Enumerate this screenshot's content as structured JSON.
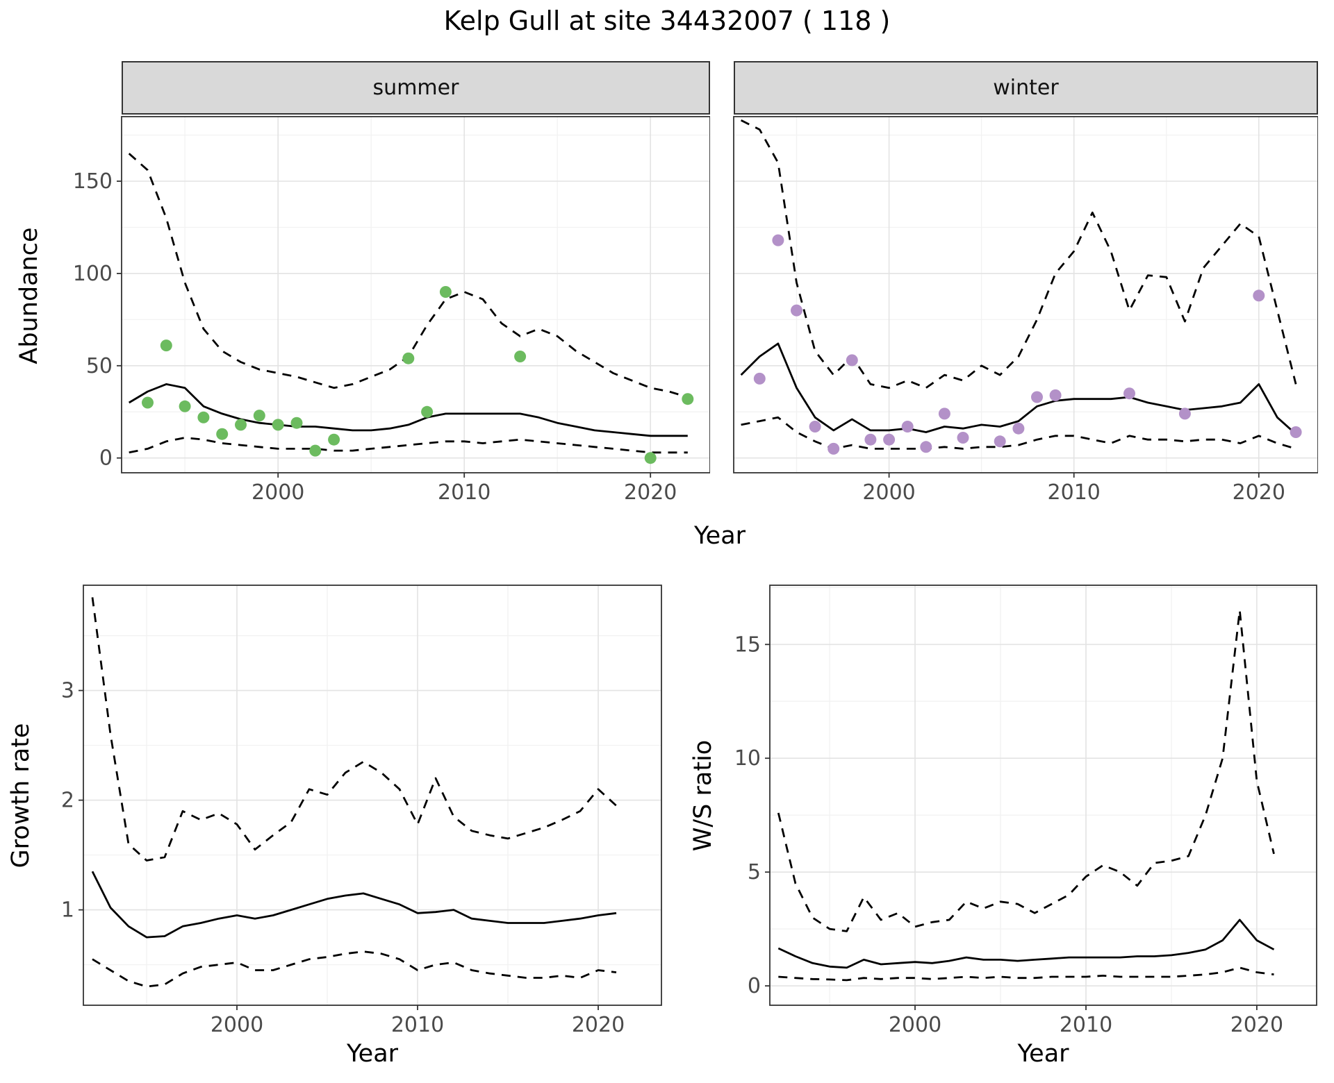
{
  "title": "Kelp Gull at site 34432007 ( 118 )",
  "axes": {
    "x": "Year",
    "abundance": "Abundance",
    "growth_rate": "Growth rate",
    "ws_ratio": "W/S ratio"
  },
  "facets": {
    "summer": "summer",
    "winter": "winter"
  },
  "colors": {
    "summer_points": "#6cbb5f",
    "winter_points": "#b391c8",
    "line": "#000000",
    "grid_major": "#e3e3e3",
    "grid_minor": "#f2f2f2",
    "strip_bg": "#d9d9d9",
    "panel_border": "#333333"
  },
  "chart_data": [
    {
      "id": "abundance-summer",
      "type": "line",
      "facet_label": "summer",
      "xlabel": "Year",
      "ylabel": "Abundance",
      "xlim": [
        1991.6,
        2023.2
      ],
      "ylim": [
        -8,
        185
      ],
      "xticks": [
        2000,
        2010,
        2020
      ],
      "yticks": [
        0,
        50,
        100,
        150
      ],
      "series": [
        {
          "name": "estimate",
          "style": "solid",
          "x": [
            1992,
            1993,
            1994,
            1995,
            1996,
            1997,
            1998,
            1999,
            2000,
            2001,
            2002,
            2003,
            2004,
            2005,
            2006,
            2007,
            2008,
            2009,
            2010,
            2011,
            2012,
            2013,
            2014,
            2015,
            2016,
            2017,
            2018,
            2019,
            2020,
            2021,
            2022
          ],
          "y": [
            30,
            36,
            40,
            38,
            28,
            24,
            21,
            19,
            18,
            17,
            17,
            16,
            15,
            15,
            16,
            18,
            22,
            24,
            24,
            24,
            24,
            24,
            22,
            19,
            17,
            15,
            14,
            13,
            12,
            12,
            12
          ]
        },
        {
          "name": "upper-ci",
          "style": "dashed",
          "x": [
            1992,
            1993,
            1994,
            1995,
            1996,
            1997,
            1998,
            1999,
            2000,
            2001,
            2002,
            2003,
            2004,
            2005,
            2006,
            2007,
            2008,
            2009,
            2010,
            2011,
            2012,
            2013,
            2014,
            2015,
            2016,
            2017,
            2018,
            2019,
            2020,
            2021,
            2022
          ],
          "y": [
            165,
            156,
            130,
            95,
            70,
            58,
            52,
            48,
            46,
            44,
            41,
            38,
            40,
            44,
            48,
            55,
            72,
            86,
            90,
            86,
            73,
            66,
            70,
            66,
            58,
            52,
            46,
            42,
            38,
            36,
            33
          ]
        },
        {
          "name": "lower-ci",
          "style": "dashed",
          "x": [
            1992,
            1993,
            1994,
            1995,
            1996,
            1997,
            1998,
            1999,
            2000,
            2001,
            2002,
            2003,
            2004,
            2005,
            2006,
            2007,
            2008,
            2009,
            2010,
            2011,
            2012,
            2013,
            2014,
            2015,
            2016,
            2017,
            2018,
            2019,
            2020,
            2021,
            2022
          ],
          "y": [
            3,
            5,
            9,
            11,
            10,
            8,
            7,
            6,
            5,
            5,
            5,
            4,
            4,
            5,
            6,
            7,
            8,
            9,
            9,
            8,
            9,
            10,
            9,
            8,
            7,
            6,
            5,
            4,
            3,
            3,
            3
          ]
        },
        {
          "name": "observed",
          "style": "points",
          "color": "#6cbb5f",
          "x": [
            1993,
            1994,
            1995,
            1996,
            1997,
            1998,
            1999,
            2000,
            2001,
            2002,
            2003,
            2007,
            2008,
            2009,
            2013,
            2020,
            2022
          ],
          "y": [
            30,
            61,
            28,
            22,
            13,
            18,
            23,
            18,
            19,
            4,
            10,
            54,
            25,
            90,
            55,
            0,
            32
          ]
        }
      ]
    },
    {
      "id": "abundance-winter",
      "type": "line",
      "facet_label": "winter",
      "xlabel": "Year",
      "ylabel": "Abundance",
      "xlim": [
        1991.6,
        2023.2
      ],
      "ylim": [
        -8,
        185
      ],
      "xticks": [
        2000,
        2010,
        2020
      ],
      "yticks": [
        0,
        50,
        100,
        150
      ],
      "series": [
        {
          "name": "estimate",
          "style": "solid",
          "x": [
            1992,
            1993,
            1994,
            1995,
            1996,
            1997,
            1998,
            1999,
            2000,
            2001,
            2002,
            2003,
            2004,
            2005,
            2006,
            2007,
            2008,
            2009,
            2010,
            2011,
            2012,
            2013,
            2014,
            2015,
            2016,
            2017,
            2018,
            2019,
            2020,
            2021,
            2022
          ],
          "y": [
            45,
            55,
            62,
            38,
            22,
            15,
            21,
            15,
            15,
            16,
            14,
            17,
            16,
            18,
            17,
            20,
            28,
            31,
            32,
            32,
            32,
            33,
            30,
            28,
            26,
            27,
            28,
            30,
            40,
            22,
            13
          ]
        },
        {
          "name": "upper-ci",
          "style": "dashed",
          "x": [
            1992,
            1993,
            1994,
            1995,
            1996,
            1997,
            1998,
            1999,
            2000,
            2001,
            2002,
            2003,
            2004,
            2005,
            2006,
            2007,
            2008,
            2009,
            2010,
            2011,
            2012,
            2013,
            2014,
            2015,
            2016,
            2017,
            2018,
            2019,
            2020,
            2021,
            2022
          ],
          "y": [
            183,
            178,
            160,
            95,
            58,
            45,
            55,
            40,
            38,
            42,
            38,
            45,
            42,
            50,
            45,
            55,
            75,
            100,
            112,
            133,
            112,
            80,
            99,
            98,
            74,
            103,
            115,
            127,
            120,
            80,
            40
          ]
        },
        {
          "name": "lower-ci",
          "style": "dashed",
          "x": [
            1992,
            1993,
            1994,
            1995,
            1996,
            1997,
            1998,
            1999,
            2000,
            2001,
            2002,
            2003,
            2004,
            2005,
            2006,
            2007,
            2008,
            2009,
            2010,
            2011,
            2012,
            2013,
            2014,
            2015,
            2016,
            2017,
            2018,
            2019,
            2020,
            2021,
            2022
          ],
          "y": [
            18,
            20,
            22,
            14,
            9,
            5,
            7,
            5,
            5,
            5,
            5,
            6,
            5,
            6,
            6,
            7,
            10,
            12,
            12,
            10,
            8,
            12,
            10,
            10,
            9,
            10,
            10,
            8,
            12,
            8,
            5
          ]
        },
        {
          "name": "observed",
          "style": "points",
          "color": "#b391c8",
          "x": [
            1993,
            1994,
            1995,
            1996,
            1997,
            1998,
            1999,
            2000,
            2001,
            2002,
            2003,
            2004,
            2006,
            2007,
            2008,
            2009,
            2013,
            2016,
            2020,
            2022
          ],
          "y": [
            43,
            118,
            80,
            17,
            5,
            53,
            10,
            10,
            17,
            6,
            24,
            11,
            9,
            16,
            33,
            34,
            35,
            24,
            88,
            14
          ]
        }
      ]
    },
    {
      "id": "growth-rate",
      "type": "line",
      "xlabel": "Year",
      "ylabel": "Growth rate",
      "xlim": [
        1991.5,
        2023.5
      ],
      "ylim": [
        0.13,
        3.96
      ],
      "xticks": [
        2000,
        2010,
        2020
      ],
      "yticks": [
        1,
        2,
        3
      ],
      "series": [
        {
          "name": "estimate",
          "style": "solid",
          "x": [
            1992,
            1993,
            1994,
            1995,
            1996,
            1997,
            1998,
            1999,
            2000,
            2001,
            2002,
            2003,
            2004,
            2005,
            2006,
            2007,
            2008,
            2009,
            2010,
            2011,
            2012,
            2013,
            2014,
            2015,
            2016,
            2017,
            2018,
            2019,
            2020,
            2021
          ],
          "y": [
            1.35,
            1.02,
            0.85,
            0.75,
            0.76,
            0.85,
            0.88,
            0.92,
            0.95,
            0.92,
            0.95,
            1.0,
            1.05,
            1.1,
            1.13,
            1.15,
            1.1,
            1.05,
            0.97,
            0.98,
            1.0,
            0.92,
            0.9,
            0.88,
            0.88,
            0.88,
            0.9,
            0.92,
            0.95,
            0.97
          ]
        },
        {
          "name": "upper-ci",
          "style": "dashed",
          "x": [
            1992,
            1993,
            1994,
            1995,
            1996,
            1997,
            1998,
            1999,
            2000,
            2001,
            2002,
            2003,
            2004,
            2005,
            2006,
            2007,
            2008,
            2009,
            2010,
            2011,
            2012,
            2013,
            2014,
            2015,
            2016,
            2017,
            2018,
            2019,
            2020,
            2021
          ],
          "y": [
            3.85,
            2.6,
            1.6,
            1.45,
            1.48,
            1.9,
            1.82,
            1.88,
            1.78,
            1.55,
            1.68,
            1.8,
            2.1,
            2.05,
            2.25,
            2.35,
            2.25,
            2.1,
            1.78,
            2.2,
            1.85,
            1.72,
            1.68,
            1.65,
            1.7,
            1.75,
            1.82,
            1.9,
            2.1,
            1.95
          ]
        },
        {
          "name": "lower-ci",
          "style": "dashed",
          "x": [
            1992,
            1993,
            1994,
            1995,
            1996,
            1997,
            1998,
            1999,
            2000,
            2001,
            2002,
            2003,
            2004,
            2005,
            2006,
            2007,
            2008,
            2009,
            2010,
            2011,
            2012,
            2013,
            2014,
            2015,
            2016,
            2017,
            2018,
            2019,
            2020,
            2021
          ],
          "y": [
            0.55,
            0.45,
            0.35,
            0.3,
            0.32,
            0.42,
            0.48,
            0.5,
            0.52,
            0.45,
            0.45,
            0.5,
            0.55,
            0.57,
            0.6,
            0.62,
            0.6,
            0.55,
            0.45,
            0.5,
            0.52,
            0.45,
            0.42,
            0.4,
            0.38,
            0.38,
            0.4,
            0.38,
            0.45,
            0.43
          ]
        }
      ]
    },
    {
      "id": "ws-ratio",
      "type": "line",
      "xlabel": "Year",
      "ylabel": "W/S ratio",
      "xlim": [
        1991.5,
        2023.5
      ],
      "ylim": [
        -0.85,
        17.6
      ],
      "xticks": [
        2000,
        2010,
        2020
      ],
      "yticks": [
        0,
        5,
        10,
        15
      ],
      "series": [
        {
          "name": "estimate",
          "style": "solid",
          "x": [
            1992,
            1993,
            1994,
            1995,
            1996,
            1997,
            1998,
            1999,
            2000,
            2001,
            2002,
            2003,
            2004,
            2005,
            2006,
            2007,
            2008,
            2009,
            2010,
            2011,
            2012,
            2013,
            2014,
            2015,
            2016,
            2017,
            2018,
            2019,
            2020,
            2021
          ],
          "y": [
            1.65,
            1.3,
            1.0,
            0.85,
            0.8,
            1.15,
            0.95,
            1.0,
            1.05,
            1.0,
            1.1,
            1.25,
            1.15,
            1.15,
            1.1,
            1.15,
            1.2,
            1.25,
            1.25,
            1.25,
            1.25,
            1.3,
            1.3,
            1.35,
            1.45,
            1.6,
            2.0,
            2.9,
            2.0,
            1.6
          ]
        },
        {
          "name": "upper-ci",
          "style": "dashed",
          "x": [
            1992,
            1993,
            1994,
            1995,
            1996,
            1997,
            1998,
            1999,
            2000,
            2001,
            2002,
            2003,
            2004,
            2005,
            2006,
            2007,
            2008,
            2009,
            2010,
            2011,
            2012,
            2013,
            2014,
            2015,
            2016,
            2017,
            2018,
            2019,
            2020,
            2021
          ],
          "y": [
            7.6,
            4.5,
            3.0,
            2.5,
            2.4,
            3.9,
            2.9,
            3.2,
            2.6,
            2.8,
            2.9,
            3.7,
            3.4,
            3.7,
            3.6,
            3.2,
            3.6,
            4.0,
            4.8,
            5.3,
            5.0,
            4.4,
            5.4,
            5.5,
            5.7,
            7.5,
            10.0,
            16.5,
            9.0,
            5.8
          ]
        },
        {
          "name": "lower-ci",
          "style": "dashed",
          "x": [
            1992,
            1993,
            1994,
            1995,
            1996,
            1997,
            1998,
            1999,
            2000,
            2001,
            2002,
            2003,
            2004,
            2005,
            2006,
            2007,
            2008,
            2009,
            2010,
            2011,
            2012,
            2013,
            2014,
            2015,
            2016,
            2017,
            2018,
            2019,
            2020,
            2021
          ],
          "y": [
            0.4,
            0.35,
            0.3,
            0.28,
            0.25,
            0.35,
            0.3,
            0.35,
            0.35,
            0.3,
            0.35,
            0.4,
            0.35,
            0.4,
            0.35,
            0.35,
            0.4,
            0.4,
            0.4,
            0.45,
            0.4,
            0.4,
            0.4,
            0.4,
            0.45,
            0.5,
            0.6,
            0.8,
            0.6,
            0.5
          ]
        }
      ]
    }
  ]
}
